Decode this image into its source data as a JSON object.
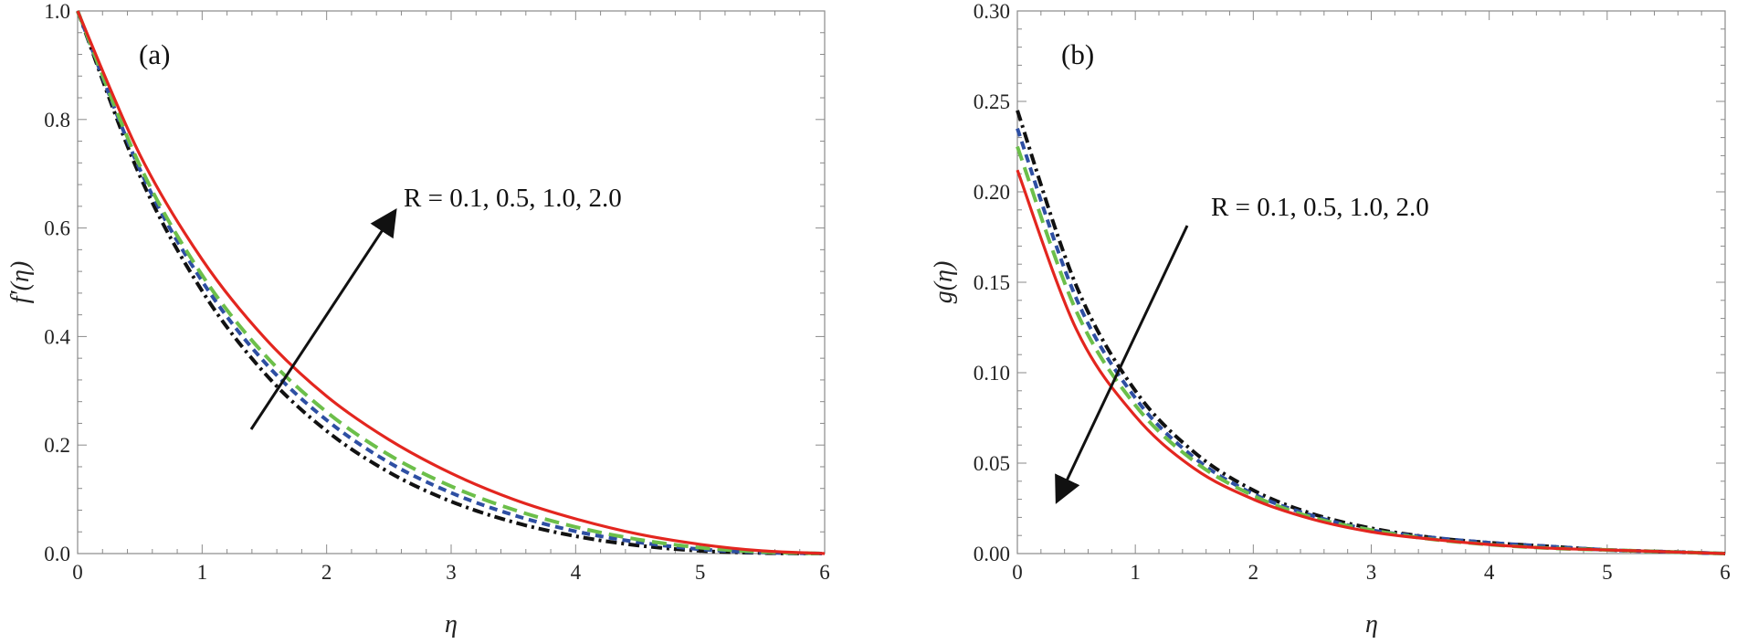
{
  "chart_data": [
    {
      "type": "line",
      "panel_label": "(a)",
      "xlabel": "η",
      "ylabel": "f′(η)",
      "xlim": [
        0,
        6
      ],
      "ylim": [
        0,
        1
      ],
      "x_ticks": [
        "0",
        "1",
        "2",
        "3",
        "4",
        "5",
        "6"
      ],
      "y_ticks": [
        "0.0",
        "0.2",
        "0.4",
        "0.6",
        "0.8",
        "1.0"
      ],
      "annotation": "R = 0.1, 0.5, 1.0, 2.0",
      "arrow_direction": "up-right",
      "x": [
        0,
        0.5,
        1,
        1.5,
        2,
        2.5,
        3,
        3.5,
        4,
        4.5,
        5,
        5.5,
        6
      ],
      "series": [
        {
          "name": "R = 0.1",
          "style": "dash-dot",
          "color": "#111111",
          "values": [
            1.0,
            0.696,
            0.484,
            0.333,
            0.226,
            0.15,
            0.096,
            0.058,
            0.032,
            0.015,
            0.005,
            0.001,
            0.0
          ]
        },
        {
          "name": "R = 0.5",
          "style": "short-dash",
          "color": "#2e4fa3",
          "values": [
            1.0,
            0.708,
            0.502,
            0.353,
            0.246,
            0.168,
            0.112,
            0.071,
            0.041,
            0.021,
            0.008,
            0.002,
            0.0
          ]
        },
        {
          "name": "R = 1.0",
          "style": "long-dash",
          "color": "#6cbf4a",
          "values": [
            1.0,
            0.715,
            0.513,
            0.367,
            0.261,
            0.182,
            0.124,
            0.081,
            0.049,
            0.026,
            0.011,
            0.003,
            0.0
          ]
        },
        {
          "name": "R = 2.0",
          "style": "solid",
          "color": "#e3261f",
          "values": [
            1.0,
            0.735,
            0.542,
            0.398,
            0.29,
            0.21,
            0.148,
            0.1,
            0.064,
            0.036,
            0.017,
            0.005,
            0.0
          ]
        }
      ]
    },
    {
      "type": "line",
      "panel_label": "(b)",
      "xlabel": "η",
      "ylabel": "g(η)",
      "xlim": [
        0,
        6
      ],
      "ylim": [
        0,
        0.3
      ],
      "x_ticks": [
        "0",
        "1",
        "2",
        "3",
        "4",
        "5",
        "6"
      ],
      "y_ticks": [
        "0.00",
        "0.05",
        "0.10",
        "0.15",
        "0.20",
        "0.25",
        "0.30"
      ],
      "annotation": "R = 0.1, 0.5, 1.0, 2.0",
      "arrow_direction": "down-left",
      "x": [
        0,
        0.5,
        1,
        1.5,
        2,
        2.5,
        3,
        3.5,
        4,
        4.5,
        5,
        5.5,
        6
      ],
      "series": [
        {
          "name": "R = 0.1",
          "style": "dash-dot",
          "color": "#111111",
          "values": [
            0.245,
            0.148,
            0.09,
            0.056,
            0.035,
            0.022,
            0.014,
            0.009,
            0.006,
            0.004,
            0.002,
            0.001,
            0.0
          ]
        },
        {
          "name": "R = 0.5",
          "style": "short-dash",
          "color": "#2e4fa3",
          "values": [
            0.235,
            0.141,
            0.086,
            0.053,
            0.033,
            0.021,
            0.013,
            0.009,
            0.006,
            0.004,
            0.002,
            0.001,
            0.0
          ]
        },
        {
          "name": "R = 1.0",
          "style": "long-dash",
          "color": "#6cbf4a",
          "values": [
            0.225,
            0.134,
            0.082,
            0.051,
            0.032,
            0.02,
            0.013,
            0.008,
            0.005,
            0.003,
            0.002,
            0.001,
            0.0
          ]
        },
        {
          "name": "R = 2.0",
          "style": "solid",
          "color": "#e3261f",
          "values": [
            0.212,
            0.124,
            0.076,
            0.047,
            0.03,
            0.019,
            0.012,
            0.008,
            0.005,
            0.003,
            0.002,
            0.001,
            0.0
          ]
        }
      ]
    }
  ]
}
